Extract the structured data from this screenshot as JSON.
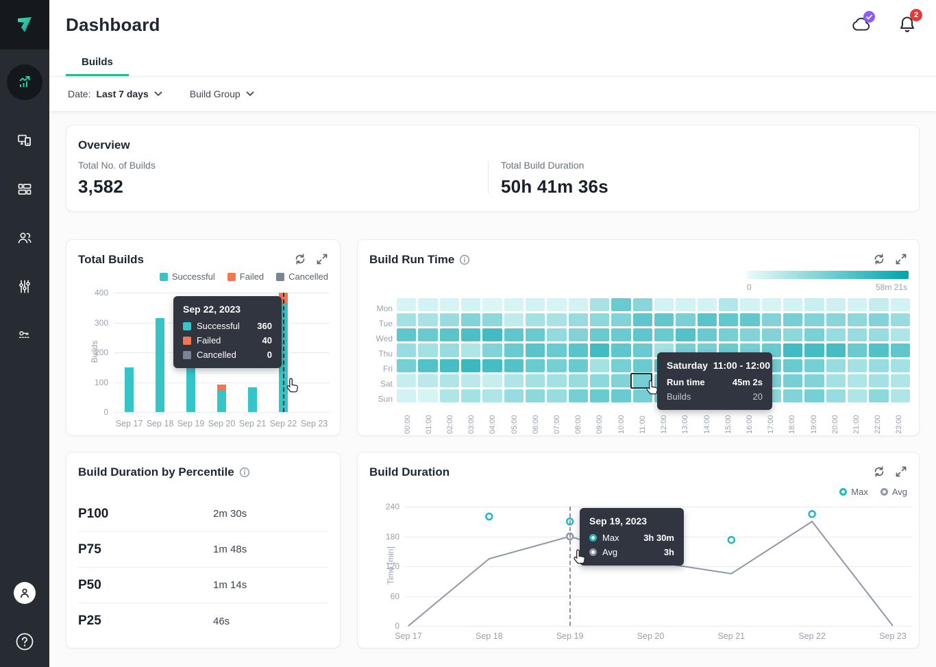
{
  "app": {
    "title": "Dashboard"
  },
  "header": {
    "cloud_status": "synced",
    "notifications_count": "2"
  },
  "sidebar": {
    "items": [
      {
        "name": "analytics",
        "active": true
      },
      {
        "name": "devices",
        "active": false
      },
      {
        "name": "projects",
        "active": false
      },
      {
        "name": "users",
        "active": false
      },
      {
        "name": "settings-sliders",
        "active": false
      },
      {
        "name": "access-key",
        "active": false
      }
    ],
    "bottom": [
      {
        "name": "profile-avatar"
      },
      {
        "name": "help"
      }
    ]
  },
  "tabs": [
    {
      "label": "Builds",
      "active": true
    }
  ],
  "filters": {
    "date_label": "Date:",
    "date_value": "Last 7 days",
    "build_group_label": "Build Group"
  },
  "overview": {
    "title": "Overview",
    "stats": [
      {
        "label": "Total No. of Builds",
        "value": "3,582"
      },
      {
        "label": "Total Build Duration",
        "value": "50h 41m 36s"
      }
    ]
  },
  "colors": {
    "accent_green": "#23BE8B",
    "successful": "#35C4C8",
    "failed": "#F4764F",
    "cancelled": "#7A8494",
    "heatmap_min": "#EAFBFB",
    "heatmap_max": "#00A3AC",
    "avg_line": "#8F96A8",
    "max_point": "#26B7BE",
    "badge_purple": "#8B5CF6",
    "badge_red": "#E23B3B",
    "tooltip_bg": "#30353F"
  },
  "chart_data": [
    {
      "id": "total_builds",
      "type": "bar",
      "title": "Total Builds",
      "stacked": true,
      "categories": [
        "Sep 17",
        "Sep 18",
        "Sep 19",
        "Sep 20",
        "Sep 21",
        "Sep 22",
        "Sep 23"
      ],
      "series": [
        {
          "name": "Successful",
          "color": "#35C4C8",
          "values": [
            150,
            315,
            250,
            72,
            83,
            360,
            0
          ]
        },
        {
          "name": "Failed",
          "color": "#F4764F",
          "values": [
            0,
            0,
            0,
            20,
            0,
            40,
            0
          ]
        },
        {
          "name": "Cancelled",
          "color": "#7A8494",
          "values": [
            0,
            0,
            0,
            0,
            0,
            0,
            0
          ]
        }
      ],
      "xlabel": "",
      "ylabel": "Builds",
      "ylim": [
        0,
        400
      ],
      "yticks": [
        0,
        100,
        200,
        300,
        400
      ],
      "grid": true,
      "legend_position": "top-right",
      "tooltip": {
        "title": "Sep 22, 2023",
        "rows": [
          [
            "Successful",
            "360"
          ],
          [
            "Failed",
            "40"
          ],
          [
            "Cancelled",
            "0"
          ]
        ],
        "highlight_index": 5
      }
    },
    {
      "id": "build_run_time",
      "type": "heatmap",
      "title": "Build Run Time",
      "rows": [
        "Mon",
        "Tue",
        "Wed",
        "Thu",
        "Fri",
        "Sat",
        "Sun"
      ],
      "cols": [
        "00:00",
        "01:00",
        "02:00",
        "03:00",
        "04:00",
        "05:00",
        "06:00",
        "07:00",
        "08:00",
        "09:00",
        "10:00",
        "11:00",
        "12:00",
        "13:00",
        "14:00",
        "15:00",
        "16:00",
        "17:00",
        "18:00",
        "19:00",
        "20:00",
        "21:00",
        "22:00",
        "23:00"
      ],
      "values": [
        [
          0.08,
          0.1,
          0.08,
          0.1,
          0.06,
          0.08,
          0.1,
          0.08,
          0.1,
          0.28,
          0.55,
          0.42,
          0.1,
          0.1,
          0.1,
          0.24,
          0.1,
          0.08,
          0.1,
          0.14,
          0.12,
          0.1,
          0.16,
          0.1
        ],
        [
          0.3,
          0.28,
          0.35,
          0.45,
          0.4,
          0.18,
          0.3,
          0.28,
          0.35,
          0.4,
          0.45,
          0.6,
          0.58,
          0.48,
          0.62,
          0.58,
          0.58,
          0.45,
          0.5,
          0.45,
          0.42,
          0.4,
          0.45,
          0.35
        ],
        [
          0.6,
          0.55,
          0.62,
          0.68,
          0.72,
          0.6,
          0.55,
          0.38,
          0.45,
          0.55,
          0.55,
          0.6,
          0.55,
          0.65,
          0.55,
          0.5,
          0.45,
          0.45,
          0.4,
          0.48,
          0.35,
          0.35,
          0.35,
          0.25
        ],
        [
          0.35,
          0.3,
          0.35,
          0.25,
          0.45,
          0.55,
          0.62,
          0.55,
          0.62,
          0.72,
          0.6,
          0.55,
          0.3,
          0.5,
          0.5,
          0.55,
          0.5,
          0.55,
          0.72,
          0.7,
          0.7,
          0.55,
          0.65,
          0.6
        ],
        [
          0.5,
          0.65,
          0.7,
          0.75,
          0.7,
          0.65,
          0.55,
          0.5,
          0.55,
          0.3,
          0.5,
          0.55,
          0.55,
          0.5,
          0.52,
          0.48,
          0.5,
          0.52,
          0.55,
          0.5,
          0.35,
          0.3,
          0.35,
          0.3
        ],
        [
          0.15,
          0.2,
          0.25,
          0.2,
          0.15,
          0.25,
          0.3,
          0.3,
          0.35,
          0.4,
          0.45,
          0.5,
          0.45,
          0.42,
          0.4,
          0.42,
          0.45,
          0.48,
          0.5,
          0.45,
          0.3,
          0.25,
          0.3,
          0.25
        ],
        [
          0.1,
          0.08,
          0.25,
          0.3,
          0.25,
          0.35,
          0.4,
          0.35,
          0.5,
          0.55,
          0.55,
          0.5,
          0.45,
          0.4,
          0.42,
          0.4,
          0.42,
          0.4,
          0.45,
          0.5,
          0.35,
          0.25,
          0.4,
          0.25
        ]
      ],
      "scale": {
        "min_label": "0",
        "max_label": "58m 21s",
        "min_color": "#EAFBFB",
        "max_color": "#00A3AC"
      },
      "tooltip": {
        "day": "Saturday",
        "range": "11:00 - 12:00",
        "rows": [
          [
            "Run time",
            "45m 2s"
          ],
          [
            "Builds",
            "20"
          ]
        ],
        "highlight": {
          "row": 5,
          "col": 11
        }
      }
    },
    {
      "id": "build_duration_percentile",
      "type": "table",
      "title": "Build Duration by Percentile",
      "rows": [
        [
          "P100",
          "2m 30s"
        ],
        [
          "P75",
          "1m 48s"
        ],
        [
          "P50",
          "1m 14s"
        ],
        [
          "P25",
          "46s"
        ]
      ]
    },
    {
      "id": "build_duration",
      "type": "line",
      "title": "Build Duration",
      "x": [
        "Sep 17",
        "Sep 18",
        "Sep 19",
        "Sep 20",
        "Sep 21",
        "Sep 22",
        "Sep 23"
      ],
      "series": [
        {
          "name": "Max",
          "style": "points",
          "color": "#26B7BE",
          "values": [
            null,
            220,
            210,
            null,
            173,
            225,
            null
          ]
        },
        {
          "name": "Avg",
          "style": "line",
          "color": "#8F96A8",
          "values": [
            0,
            135,
            180,
            130,
            105,
            210,
            0
          ],
          "point_indices": [
            2
          ]
        }
      ],
      "xlabel": "",
      "ylabel": "Time [min]",
      "ylim": [
        0,
        240
      ],
      "yticks": [
        0,
        60,
        120,
        180,
        240
      ],
      "grid": true,
      "legend_position": "top-right",
      "tooltip": {
        "title": "Sep 19, 2023",
        "rows": [
          [
            "Max",
            "3h 30m"
          ],
          [
            "Avg",
            "3h"
          ]
        ],
        "x_index": 2
      }
    }
  ]
}
